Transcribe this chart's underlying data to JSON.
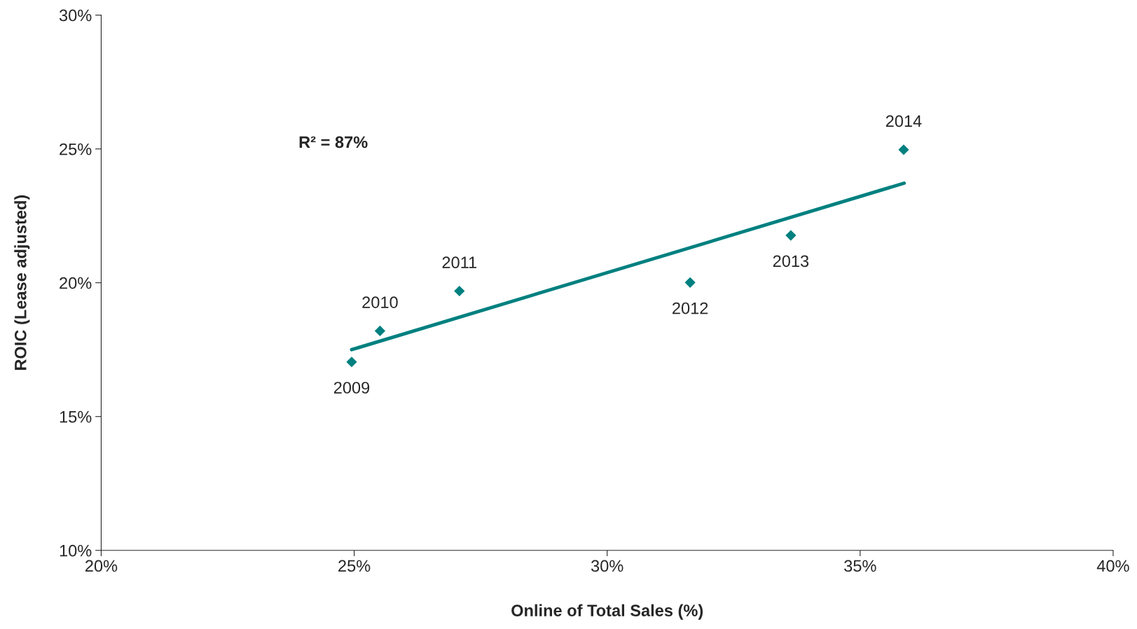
{
  "chart_data": {
    "type": "scatter",
    "xlabel": "Online of Total Sales (%)",
    "ylabel": "ROIC (Lease adjusted)",
    "xlim": [
      20,
      40
    ],
    "xticks": [
      {
        "value": 20,
        "label": "20%"
      },
      {
        "value": 25,
        "label": "25%"
      },
      {
        "value": 30,
        "label": "30%"
      },
      {
        "value": 35,
        "label": "35%"
      },
      {
        "value": 40,
        "label": "40%"
      }
    ],
    "ylim": [
      10,
      30
    ],
    "yticks": [
      {
        "value": 10,
        "label": "10%"
      },
      {
        "value": 15,
        "label": "15%"
      },
      {
        "value": 20,
        "label": "20%"
      },
      {
        "value": 25,
        "label": "25%"
      },
      {
        "value": 30,
        "label": "30%"
      }
    ],
    "grid": false,
    "legend": false,
    "series": [
      {
        "marker": "diamond",
        "color": "#008080",
        "x": [
          24.95,
          25.51,
          27.08,
          31.64,
          33.63,
          35.86
        ],
        "values": [
          17.04,
          18.2,
          19.69,
          20.01,
          21.77,
          24.97
        ]
      },
      {
        "type": "line",
        "color": "#008080",
        "x": [
          24.95,
          35.87
        ],
        "values": [
          17.5,
          23.72
        ]
      }
    ],
    "annotations": [
      "R² = 87%",
      {
        "text": "2009",
        "x": 24.95,
        "y": 17.04
      },
      {
        "text": "2010",
        "x": 25.51,
        "y": 18.2
      },
      {
        "text": "2011",
        "x": 27.08,
        "y": 19.69
      },
      {
        "text": "2012",
        "x": 31.64,
        "y": 20.01
      },
      {
        "text": "2013",
        "x": 33.63,
        "y": 21.77
      },
      {
        "text": "2014",
        "x": 35.86,
        "y": 24.97
      }
    ]
  }
}
